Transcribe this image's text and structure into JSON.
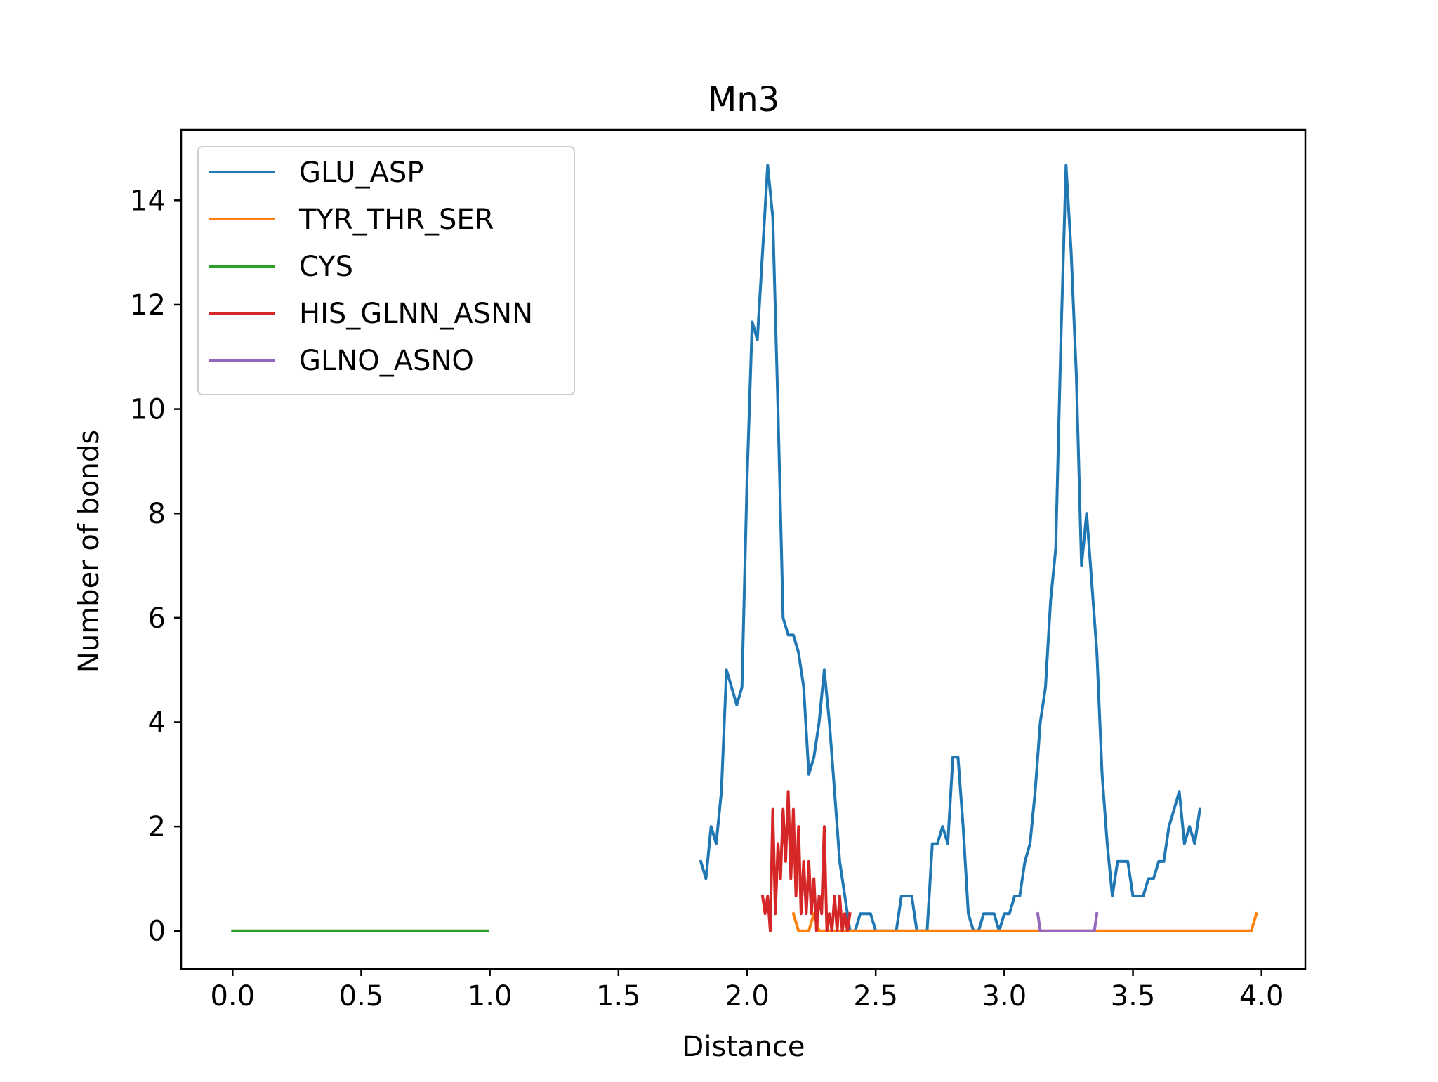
{
  "chart_data": {
    "type": "line",
    "title": "Mn3",
    "xlabel": "Distance",
    "ylabel": "Number of bonds",
    "xlim": [
      -0.2,
      4.17
    ],
    "ylim": [
      -0.73,
      15.35
    ],
    "xticks": [
      0.0,
      0.5,
      1.0,
      1.5,
      2.0,
      2.5,
      3.0,
      3.5,
      4.0
    ],
    "xtick_labels": [
      "0.0",
      "0.5",
      "1.0",
      "1.5",
      "2.0",
      "2.5",
      "3.0",
      "3.5",
      "4.0"
    ],
    "yticks": [
      0,
      2,
      4,
      6,
      8,
      10,
      12,
      14
    ],
    "ytick_labels": [
      "0",
      "2",
      "4",
      "6",
      "8",
      "10",
      "12",
      "14"
    ],
    "grid": false,
    "legend_position": "top-left",
    "series": [
      {
        "name": "GLU_ASP",
        "color": "#1f77b4",
        "points": [
          [
            1.82,
            1.33
          ],
          [
            1.84,
            1.0
          ],
          [
            1.86,
            2.0
          ],
          [
            1.88,
            1.67
          ],
          [
            1.9,
            2.67
          ],
          [
            1.92,
            5.0
          ],
          [
            1.96,
            4.33
          ],
          [
            1.98,
            4.67
          ],
          [
            2.0,
            8.67
          ],
          [
            2.02,
            11.67
          ],
          [
            2.04,
            11.33
          ],
          [
            2.06,
            13.0
          ],
          [
            2.08,
            14.67
          ],
          [
            2.1,
            13.67
          ],
          [
            2.12,
            10.0
          ],
          [
            2.14,
            6.0
          ],
          [
            2.16,
            5.67
          ],
          [
            2.18,
            5.67
          ],
          [
            2.2,
            5.33
          ],
          [
            2.22,
            4.67
          ],
          [
            2.24,
            3.0
          ],
          [
            2.26,
            3.33
          ],
          [
            2.28,
            4.0
          ],
          [
            2.3,
            5.0
          ],
          [
            2.32,
            4.0
          ],
          [
            2.34,
            2.67
          ],
          [
            2.36,
            1.33
          ],
          [
            2.38,
            0.67
          ],
          [
            2.4,
            0.0
          ],
          [
            2.42,
            0.0
          ],
          [
            2.44,
            0.33
          ],
          [
            2.48,
            0.33
          ],
          [
            2.5,
            0.0
          ],
          [
            2.58,
            0.0
          ],
          [
            2.6,
            0.67
          ],
          [
            2.64,
            0.67
          ],
          [
            2.66,
            0.0
          ],
          [
            2.7,
            0.0
          ],
          [
            2.72,
            1.67
          ],
          [
            2.74,
            1.67
          ],
          [
            2.76,
            2.0
          ],
          [
            2.78,
            1.67
          ],
          [
            2.8,
            3.33
          ],
          [
            2.82,
            3.33
          ],
          [
            2.84,
            2.0
          ],
          [
            2.86,
            0.33
          ],
          [
            2.88,
            0.0
          ],
          [
            2.9,
            0.0
          ],
          [
            2.92,
            0.33
          ],
          [
            2.96,
            0.33
          ],
          [
            2.98,
            0.0
          ],
          [
            3.0,
            0.33
          ],
          [
            3.02,
            0.33
          ],
          [
            3.04,
            0.67
          ],
          [
            3.06,
            0.67
          ],
          [
            3.08,
            1.33
          ],
          [
            3.1,
            1.67
          ],
          [
            3.12,
            2.67
          ],
          [
            3.14,
            4.0
          ],
          [
            3.16,
            4.67
          ],
          [
            3.18,
            6.33
          ],
          [
            3.2,
            7.33
          ],
          [
            3.22,
            11.33
          ],
          [
            3.24,
            14.67
          ],
          [
            3.26,
            13.0
          ],
          [
            3.28,
            10.67
          ],
          [
            3.3,
            7.0
          ],
          [
            3.32,
            8.0
          ],
          [
            3.34,
            6.67
          ],
          [
            3.36,
            5.33
          ],
          [
            3.38,
            3.0
          ],
          [
            3.4,
            1.67
          ],
          [
            3.42,
            0.67
          ],
          [
            3.44,
            1.33
          ],
          [
            3.48,
            1.33
          ],
          [
            3.5,
            0.67
          ],
          [
            3.54,
            0.67
          ],
          [
            3.56,
            1.0
          ],
          [
            3.58,
            1.0
          ],
          [
            3.6,
            1.33
          ],
          [
            3.62,
            1.33
          ],
          [
            3.64,
            2.0
          ],
          [
            3.66,
            2.33
          ],
          [
            3.68,
            2.67
          ],
          [
            3.7,
            1.67
          ],
          [
            3.72,
            2.0
          ],
          [
            3.74,
            1.67
          ],
          [
            3.76,
            2.33
          ]
        ]
      },
      {
        "name": "TYR_THR_SER",
        "color": "#ff7f0e",
        "points": [
          [
            2.18,
            0.33
          ],
          [
            2.2,
            0.0
          ],
          [
            2.24,
            0.0
          ],
          [
            2.26,
            0.33
          ],
          [
            2.28,
            0.0
          ],
          [
            3.96,
            0.0
          ],
          [
            3.98,
            0.33
          ]
        ]
      },
      {
        "name": "CYS",
        "color": "#2ca02c",
        "points": [
          [
            0.0,
            0.0
          ],
          [
            0.99,
            0.0
          ]
        ]
      },
      {
        "name": "HIS_GLNN_ASNN",
        "color": "#d62728",
        "points": [
          [
            2.06,
            0.67
          ],
          [
            2.07,
            0.33
          ],
          [
            2.08,
            0.67
          ],
          [
            2.09,
            0.0
          ],
          [
            2.1,
            2.33
          ],
          [
            2.11,
            0.33
          ],
          [
            2.12,
            1.67
          ],
          [
            2.13,
            1.0
          ],
          [
            2.14,
            2.33
          ],
          [
            2.15,
            1.33
          ],
          [
            2.16,
            2.67
          ],
          [
            2.17,
            1.0
          ],
          [
            2.18,
            2.33
          ],
          [
            2.19,
            0.67
          ],
          [
            2.2,
            2.0
          ],
          [
            2.21,
            0.33
          ],
          [
            2.22,
            1.33
          ],
          [
            2.23,
            0.33
          ],
          [
            2.24,
            1.33
          ],
          [
            2.25,
            0.33
          ],
          [
            2.26,
            1.0
          ],
          [
            2.27,
            0.0
          ],
          [
            2.28,
            0.67
          ],
          [
            2.29,
            0.33
          ],
          [
            2.3,
            2.0
          ],
          [
            2.31,
            0.0
          ],
          [
            2.32,
            0.33
          ],
          [
            2.33,
            0.0
          ],
          [
            2.34,
            0.67
          ],
          [
            2.35,
            0.0
          ],
          [
            2.36,
            0.67
          ],
          [
            2.37,
            0.0
          ],
          [
            2.38,
            0.33
          ],
          [
            2.39,
            0.0
          ],
          [
            2.4,
            0.33
          ]
        ]
      },
      {
        "name": "GLNO_ASNO",
        "color": "#9467bd",
        "points": [
          [
            3.13,
            0.33
          ],
          [
            3.14,
            0.0
          ],
          [
            3.35,
            0.0
          ],
          [
            3.36,
            0.33
          ]
        ]
      }
    ]
  }
}
